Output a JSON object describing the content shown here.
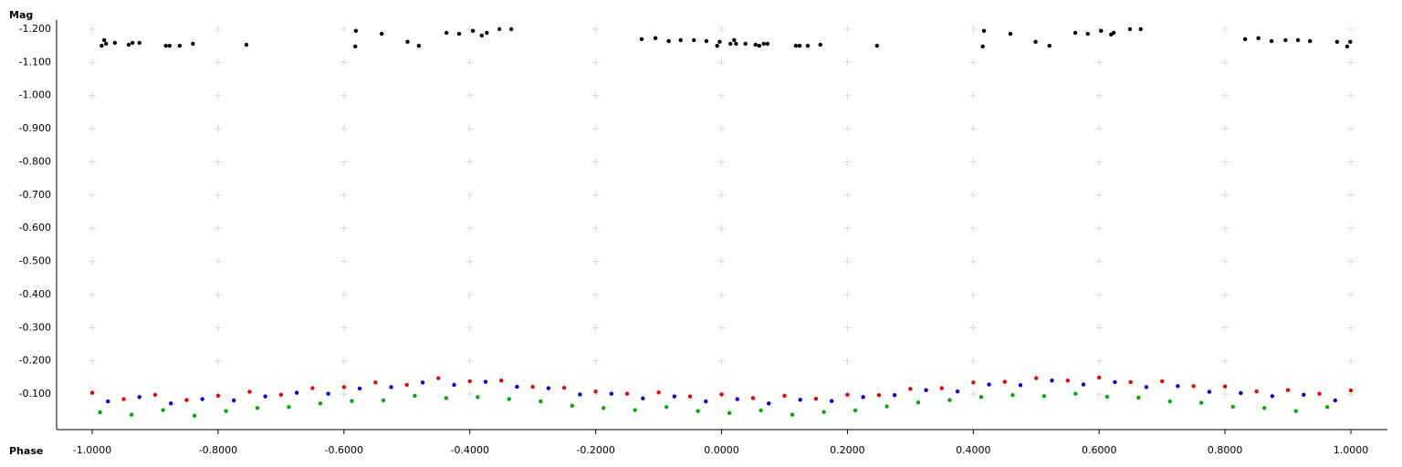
{
  "chart_data": {
    "type": "scatter",
    "y_axis_label": "Mag",
    "x_axis_label": "Phase",
    "xlim": [
      -1.0566,
      1.058
    ],
    "ylim": [
      0.007,
      -1.2275
    ],
    "xticks": [
      {
        "value": -1,
        "label": "-1.0000"
      },
      {
        "value": -0.8,
        "label": "-0.8000"
      },
      {
        "value": -0.6,
        "label": "-0.6000"
      },
      {
        "value": -0.4,
        "label": "-0.4000"
      },
      {
        "value": -0.2,
        "label": "-0.2000"
      },
      {
        "value": 0,
        "label": "0.0000"
      },
      {
        "value": 0.2,
        "label": "0.2000"
      },
      {
        "value": 0.4,
        "label": "0.4000"
      },
      {
        "value": 0.6,
        "label": "0.6000"
      },
      {
        "value": 0.8,
        "label": "0.8000"
      },
      {
        "value": 1,
        "label": "1.0000"
      }
    ],
    "yticks": [
      {
        "value": -1.2,
        "label": "-1.200"
      },
      {
        "value": -1.1,
        "label": "-1.100"
      },
      {
        "value": -1.0,
        "label": "-1.000"
      },
      {
        "value": -0.9,
        "label": "-0.900"
      },
      {
        "value": -0.8,
        "label": "-0.800"
      },
      {
        "value": -0.7,
        "label": "-0.700"
      },
      {
        "value": -0.6,
        "label": "-0.600"
      },
      {
        "value": -0.5,
        "label": "-0.500"
      },
      {
        "value": -0.4,
        "label": "-0.400"
      },
      {
        "value": -0.3,
        "label": "-0.300"
      },
      {
        "value": -0.2,
        "label": "-0.200"
      },
      {
        "value": -0.1,
        "label": "-0.100"
      }
    ],
    "grid": true,
    "series": [
      {
        "color": "#000000",
        "x": [
          -0.985,
          -0.981,
          -0.978,
          -0.964,
          -0.942,
          -0.936,
          -0.925,
          -0.883,
          -0.877,
          -0.861,
          -0.84,
          -0.755,
          -0.582,
          -0.581,
          -0.54,
          -0.499,
          -0.481,
          -0.437,
          -0.417,
          -0.395,
          -0.381,
          -0.373,
          -0.353,
          -0.334,
          -0.127,
          -0.105,
          -0.084,
          -0.065,
          -0.044,
          -0.024,
          -0.007,
          -0.003,
          0.014,
          0.02,
          0.023,
          0.038,
          0.054,
          0.06,
          0.067,
          0.073,
          0.118,
          0.124,
          0.137,
          0.157,
          0.247,
          0.415,
          0.417,
          0.459,
          0.499,
          0.521,
          0.562,
          0.582,
          0.603,
          0.619,
          0.623,
          0.649,
          0.666,
          0.832,
          0.853,
          0.874,
          0.896,
          0.916,
          0.935,
          0.978,
          0.994,
          0.999
        ],
        "values": [
          -1.15,
          -1.167,
          -1.156,
          -1.159,
          -1.153,
          -1.159,
          -1.159,
          -1.15,
          -1.15,
          -1.15,
          -1.156,
          -1.153,
          -1.148,
          -1.195,
          -1.186,
          -1.162,
          -1.15,
          -1.189,
          -1.186,
          -1.195,
          -1.181,
          -1.189,
          -1.2,
          -1.2,
          -1.17,
          -1.173,
          -1.164,
          -1.167,
          -1.167,
          -1.164,
          -1.15,
          -1.162,
          -1.156,
          -1.167,
          -1.156,
          -1.156,
          -1.153,
          -1.15,
          -1.156,
          -1.156,
          -1.15,
          -1.15,
          -1.15,
          -1.153,
          -1.15,
          -1.148,
          -1.195,
          -1.186,
          -1.162,
          -1.15,
          -1.189,
          -1.186,
          -1.195,
          -1.184,
          -1.189,
          -1.2,
          -1.2,
          -1.17,
          -1.173,
          -1.164,
          -1.167,
          -1.167,
          -1.164,
          -1.162,
          -1.148,
          -1.162
        ]
      },
      {
        "color": "#ee0000",
        "x": [
          -1,
          -0.95,
          -0.9,
          -0.85,
          -0.8,
          -0.75,
          -0.7,
          -0.65,
          -0.6,
          -0.55,
          -0.5,
          -0.45,
          -0.4,
          -0.35,
          -0.3,
          -0.25,
          -0.2,
          -0.15,
          -0.1,
          -0.05,
          0,
          0.05,
          0.1,
          0.15,
          0.2,
          0.25,
          0.3,
          0.35,
          0.4,
          0.45,
          0.5,
          0.55,
          0.6,
          0.65,
          0.7,
          0.75,
          0.8,
          0.85,
          0.9,
          0.95,
          1
        ],
        "values": [
          -0.104,
          -0.085,
          -0.098,
          -0.082,
          -0.095,
          -0.107,
          -0.098,
          -0.118,
          -0.121,
          -0.135,
          -0.128,
          -0.148,
          -0.139,
          -0.141,
          -0.122,
          -0.119,
          -0.108,
          -0.101,
          -0.105,
          -0.093,
          -0.099,
          -0.088,
          -0.095,
          -0.086,
          -0.098,
          -0.097,
          -0.116,
          -0.118,
          -0.135,
          -0.137,
          -0.148,
          -0.141,
          -0.15,
          -0.136,
          -0.139,
          -0.124,
          -0.123,
          -0.108,
          -0.112,
          -0.101,
          -0.111
        ]
      },
      {
        "color": "#0000dd",
        "x": [
          -0.975,
          -0.925,
          -0.875,
          -0.825,
          -0.775,
          -0.725,
          -0.675,
          -0.625,
          -0.575,
          -0.525,
          -0.475,
          -0.425,
          -0.375,
          -0.325,
          -0.275,
          -0.225,
          -0.175,
          -0.125,
          -0.075,
          -0.025,
          0.025,
          0.075,
          0.125,
          0.175,
          0.225,
          0.275,
          0.325,
          0.375,
          0.425,
          0.475,
          0.525,
          0.575,
          0.625,
          0.675,
          0.725,
          0.775,
          0.825,
          0.875,
          0.925,
          0.975
        ],
        "values": [
          -0.078,
          -0.091,
          -0.072,
          -0.085,
          -0.081,
          -0.093,
          -0.104,
          -0.101,
          -0.117,
          -0.121,
          -0.135,
          -0.128,
          -0.137,
          -0.122,
          -0.118,
          -0.099,
          -0.101,
          -0.087,
          -0.093,
          -0.078,
          -0.085,
          -0.072,
          -0.083,
          -0.079,
          -0.091,
          -0.097,
          -0.112,
          -0.108,
          -0.129,
          -0.127,
          -0.141,
          -0.129,
          -0.136,
          -0.121,
          -0.124,
          -0.107,
          -0.103,
          -0.094,
          -0.098,
          -0.081
        ]
      },
      {
        "color": "#00aa00",
        "x": [
          -0.9875,
          -0.9375,
          -0.8875,
          -0.8375,
          -0.7875,
          -0.7375,
          -0.6875,
          -0.6375,
          -0.5875,
          -0.5375,
          -0.4875,
          -0.4375,
          -0.3875,
          -0.3375,
          -0.2875,
          -0.2375,
          -0.1875,
          -0.1375,
          -0.0875,
          -0.0375,
          0.0125,
          0.0625,
          0.1125,
          0.1625,
          0.2125,
          0.2625,
          0.3125,
          0.3625,
          0.4125,
          0.4625,
          0.5125,
          0.5625,
          0.6125,
          0.6625,
          0.7125,
          0.7625,
          0.8125,
          0.8625,
          0.9125,
          0.9625
        ],
        "values": [
          -0.045,
          -0.038,
          -0.052,
          -0.035,
          -0.049,
          -0.058,
          -0.061,
          -0.072,
          -0.079,
          -0.081,
          -0.095,
          -0.088,
          -0.091,
          -0.085,
          -0.078,
          -0.065,
          -0.058,
          -0.052,
          -0.061,
          -0.049,
          -0.043,
          -0.051,
          -0.038,
          -0.046,
          -0.051,
          -0.063,
          -0.075,
          -0.082,
          -0.091,
          -0.097,
          -0.094,
          -0.101,
          -0.092,
          -0.089,
          -0.078,
          -0.074,
          -0.062,
          -0.058,
          -0.049,
          -0.061
        ]
      }
    ]
  }
}
